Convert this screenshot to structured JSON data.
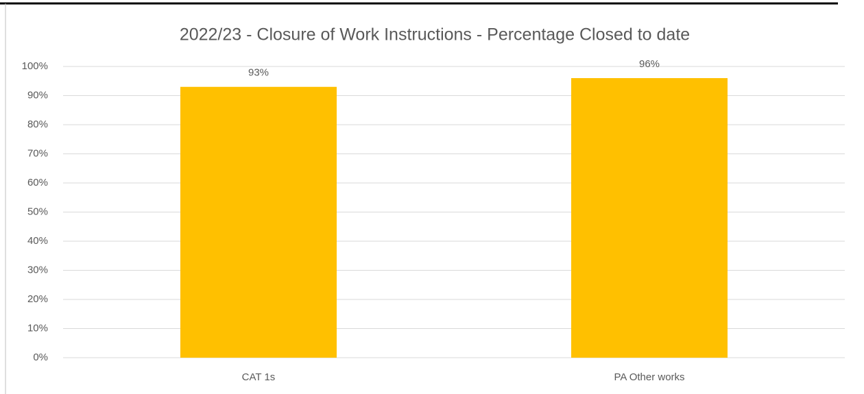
{
  "chart_data": {
    "type": "bar",
    "title": "2022/23 - Closure of Work Instructions - Percentage Closed to date",
    "categories": [
      "CAT 1s",
      "PA Other works"
    ],
    "values": [
      93,
      96
    ],
    "value_labels": [
      "93%",
      "96%"
    ],
    "color": "#ffc000",
    "ylim": [
      0,
      100
    ],
    "yticks": [
      {
        "value": 0,
        "label": "0%"
      },
      {
        "value": 10,
        "label": "10%"
      },
      {
        "value": 20,
        "label": "20%"
      },
      {
        "value": 30,
        "label": "30%"
      },
      {
        "value": 40,
        "label": "40%"
      },
      {
        "value": 50,
        "label": "50%"
      },
      {
        "value": 60,
        "label": "60%"
      },
      {
        "value": 70,
        "label": "70%"
      },
      {
        "value": 80,
        "label": "80%"
      },
      {
        "value": 90,
        "label": "90%"
      },
      {
        "value": 100,
        "label": "100%"
      }
    ],
    "grid": true
  }
}
